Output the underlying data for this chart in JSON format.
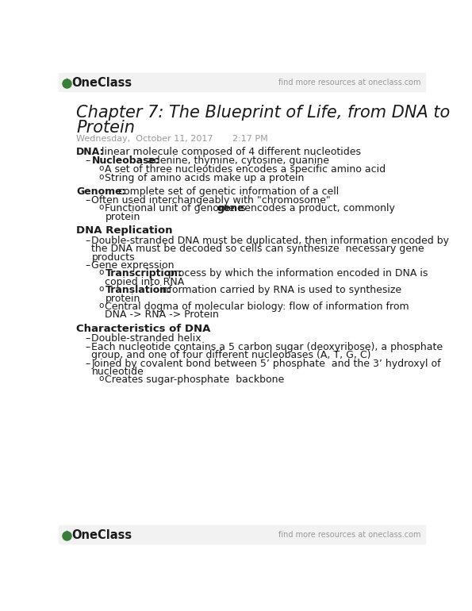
{
  "bg_color": "#ffffff",
  "header_bg": "#f2f2f2",
  "oneclass_green": "#3a7d3a",
  "text_dark": "#1a1a1a",
  "gray_text": "#999999",
  "header_top_text": "find more resources at oneclass.com",
  "logo_text": "OneClass",
  "title_line1": "Chapter 7: The Blueprint of Life, from DNA to",
  "title_line2": "Protein",
  "date_text": "Wednesday,  October 11, 2017       2:17 PM",
  "content": [
    {
      "type": "b0",
      "bold": "DNA:",
      "normal": " linear molecule composed of 4 different nucleotides"
    },
    {
      "type": "b1",
      "bold": "Nucleobase:",
      "normal": " adenine, thymine, cytosine, guanine"
    },
    {
      "type": "b2",
      "text": "A set of three nucleotides encodes a specific amino acid"
    },
    {
      "type": "b2",
      "text": "String of amino acids make up a protein"
    },
    {
      "type": "sp"
    },
    {
      "type": "b0",
      "bold": "Genome:",
      "normal": " complete set of genetic information of a cell"
    },
    {
      "type": "b1n",
      "text": "Often used interchangeably with \"chromosome\""
    },
    {
      "type": "b2m",
      "pre": "Functional unit of genome is ",
      "bold": "gene",
      "post": ": encodes a product, commonly",
      "wrap": "protein"
    },
    {
      "type": "sp"
    },
    {
      "type": "sec",
      "text": "DNA Replication"
    },
    {
      "type": "b1n",
      "text": "Double-stranded DNA must be duplicated, then information encoded by"
    },
    {
      "type": "b1c",
      "text": "the DNA must be decoded so cells can synthesize  necessary gene"
    },
    {
      "type": "b1c",
      "text": "products"
    },
    {
      "type": "b1n",
      "text": "Gene expression"
    },
    {
      "type": "b2b",
      "bold": "Transcription:",
      "normal": " process by which the information encoded in DNA is"
    },
    {
      "type": "b2c",
      "text": "copied into RNA"
    },
    {
      "type": "b2b",
      "bold": "Translation:",
      "normal": " information carried by RNA is used to synthesize"
    },
    {
      "type": "b2c",
      "text": "protein"
    },
    {
      "type": "b2",
      "text": "Central dogma of molecular biology: flow of information from"
    },
    {
      "type": "b2c",
      "text": "DNA -> RNA -> Protein"
    },
    {
      "type": "sp"
    },
    {
      "type": "sec",
      "text": "Characteristics of DNA"
    },
    {
      "type": "b1n",
      "text": "Double-stranded helix"
    },
    {
      "type": "b1n",
      "text": "Each nucleotide contains a 5 carbon sugar (deoxyribose), a phosphate"
    },
    {
      "type": "b1c",
      "text": "group, and one of four different nucleobases (A, T, G, C)"
    },
    {
      "type": "b1n",
      "text": "Joined by covalent bond between 5’ phosphate  and the 3’ hydroxyl of"
    },
    {
      "type": "b1c",
      "text": "nucleotide"
    },
    {
      "type": "b2",
      "text": "Creates sugar-phosphate  backbone"
    }
  ]
}
